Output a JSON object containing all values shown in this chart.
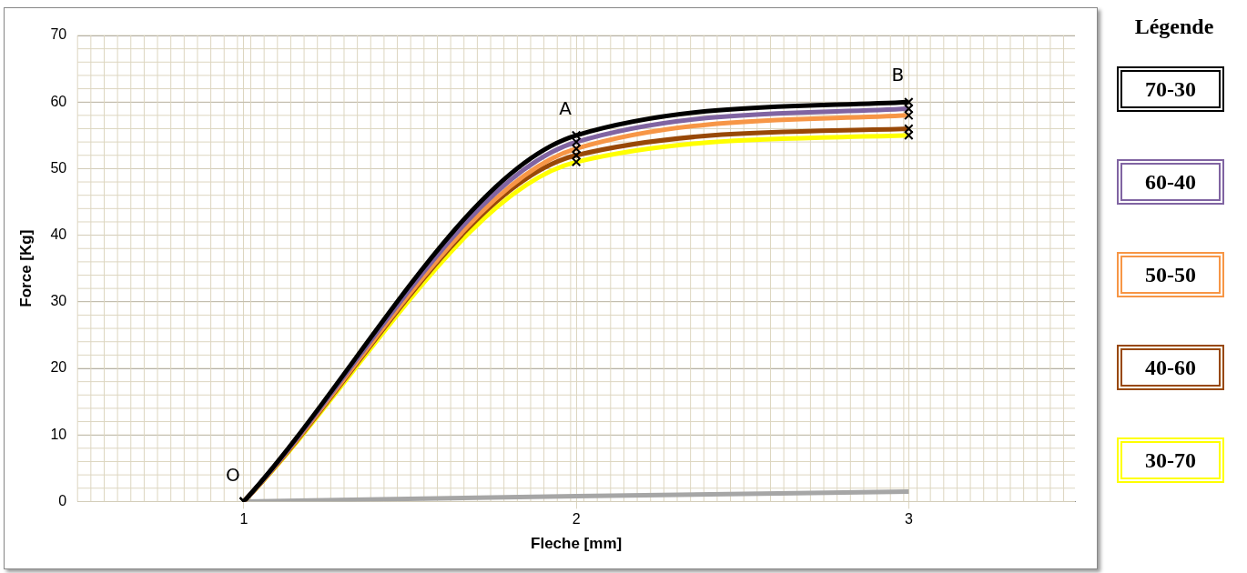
{
  "chart_data": {
    "type": "line",
    "xlabel": "Fleche [mm]",
    "ylabel": "Force [Kg]",
    "legend_title": "Légende",
    "legend": "right",
    "grid": true,
    "marker": "cross",
    "line_style": "solid",
    "categories": [
      "1",
      "2",
      "3"
    ],
    "ylim": [
      0,
      70
    ],
    "yticks": [
      0,
      10,
      20,
      30,
      40,
      50,
      60,
      70
    ],
    "series": [
      {
        "name": "70-30",
        "color": "#000000",
        "values": [
          0,
          55,
          60
        ]
      },
      {
        "name": "60-40",
        "color": "#8064a2",
        "values": [
          0,
          54,
          59
        ]
      },
      {
        "name": "50-50",
        "color": "#f79646",
        "values": [
          0,
          53,
          58
        ]
      },
      {
        "name": "40-60",
        "color": "#984807",
        "values": [
          0,
          52,
          56
        ]
      },
      {
        "name": "30-70",
        "color": "#ffff00",
        "values": [
          0,
          51,
          55
        ]
      },
      {
        "color": "#a6a6a6",
        "marker": "none",
        "values": [
          0,
          0.8,
          1.5
        ]
      }
    ],
    "annotations": [
      {
        "text": "O",
        "x": "1",
        "y": 0
      },
      {
        "text": "A",
        "x": "2",
        "y": 55
      },
      {
        "text": "B",
        "x": "3",
        "y": 60
      }
    ]
  }
}
